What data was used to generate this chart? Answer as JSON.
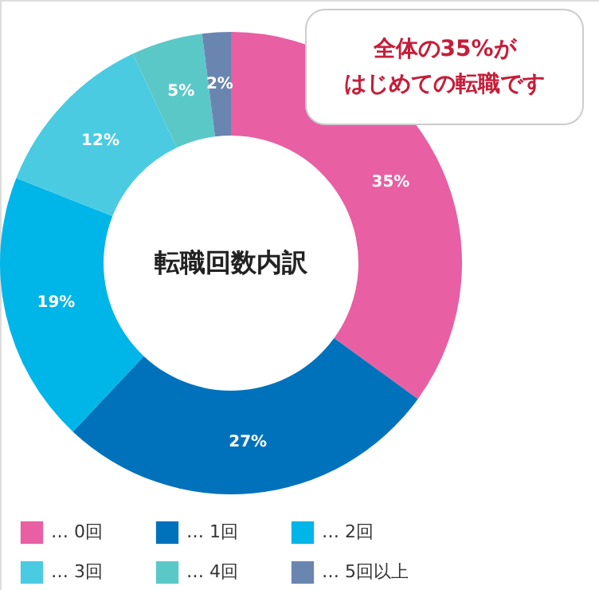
{
  "chart_data": {
    "type": "donut",
    "title": "転職回数内訳",
    "categories": [
      "… 0回",
      "… 1回",
      "… 2回",
      "… 3回",
      "… 4回",
      "… 5回以上"
    ],
    "values": [
      35,
      27,
      19,
      12,
      5,
      2
    ],
    "colors": [
      "#e85fa3",
      "#0072bc",
      "#00b5e8",
      "#4acbe2",
      "#5bc8c8",
      "#6a85b0"
    ],
    "value_labels": [
      "35%",
      "27%",
      "19%",
      "12%",
      "5%",
      "2%"
    ],
    "annotations": [
      "全体の35%が",
      "はじめての転職です"
    ],
    "legend": "bottom"
  }
}
